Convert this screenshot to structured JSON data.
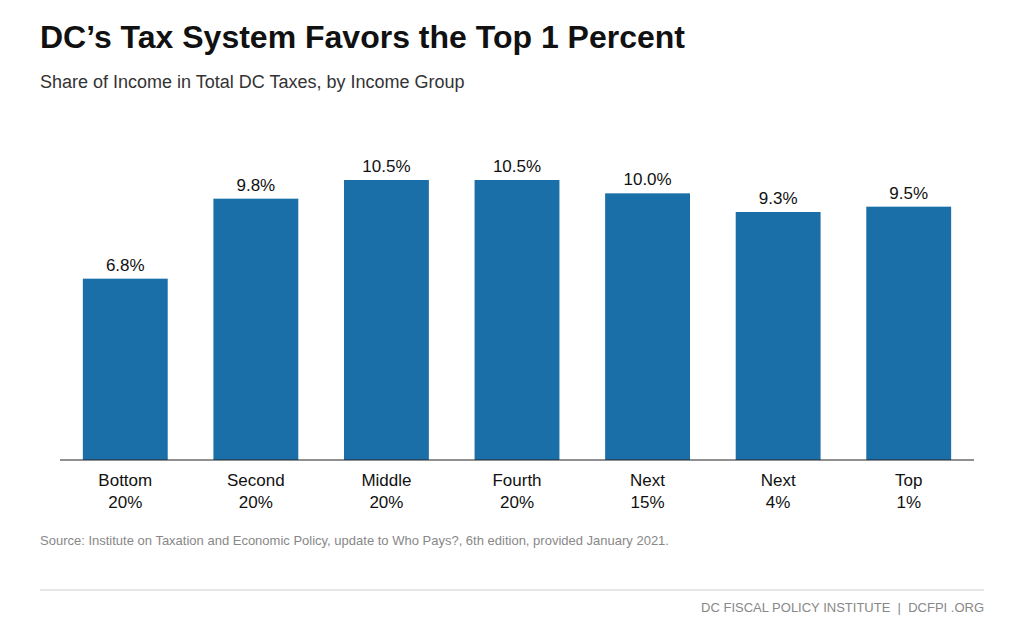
{
  "chart_data": {
    "type": "bar",
    "title": "DC’s Tax System Favors the Top 1 Percent",
    "subtitle": "Share of Income in Total DC Taxes, by Income Group",
    "categories": [
      "Bottom\n20%",
      "Second\n20%",
      "Middle\n20%",
      "Fourth\n20%",
      "Next\n15%",
      "Next\n4%",
      "Top\n1%"
    ],
    "values": [
      6.8,
      9.8,
      10.5,
      10.5,
      10.0,
      9.3,
      9.5
    ],
    "value_labels": [
      "6.8%",
      "9.8%",
      "10.5%",
      "10.5%",
      "10.0%",
      "9.3%",
      "9.5%"
    ],
    "data_labels": true,
    "color": "#1B6FA8",
    "ylim": [
      0,
      12
    ],
    "tick_labels": "x",
    "grid": false,
    "source": "Source: Institute on Taxation and Economic Policy, update to Who Pays?, 6th edition, provided January 2021.",
    "footer": "DC FISCAL POLICY INSTITUTE  |  DCFPI .ORG"
  }
}
